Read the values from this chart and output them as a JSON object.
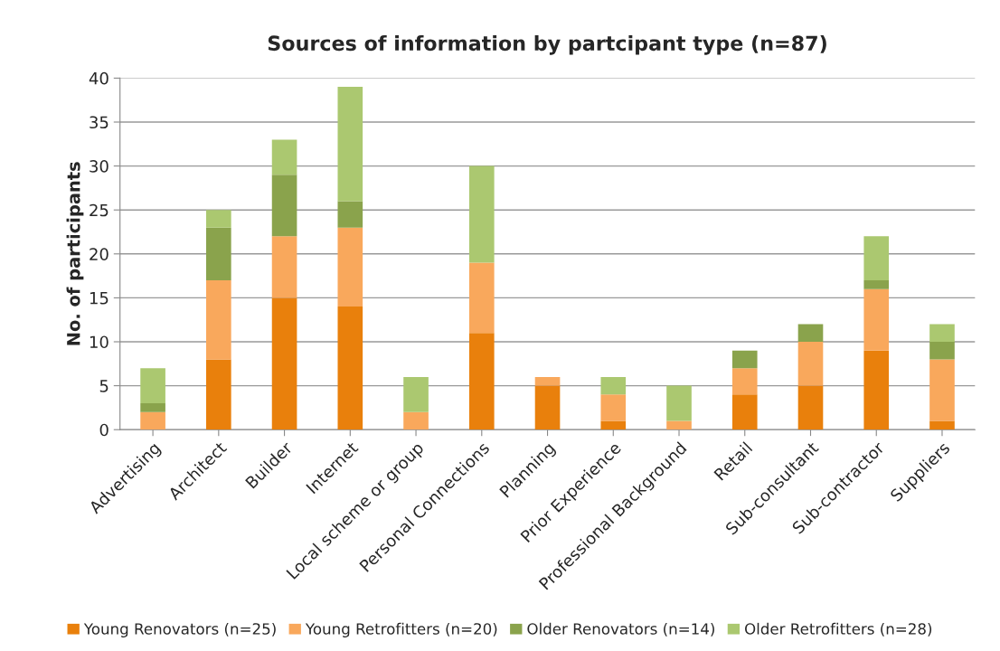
{
  "chart_data": {
    "type": "bar",
    "stacked": true,
    "title": "Sources of information by partcipant type (n=87)",
    "ylabel": "No. of participants",
    "categories": [
      "Advertising",
      "Architect",
      "Builder",
      "Internet",
      "Local scheme or group",
      "Personal Connections",
      "Planning",
      "Prior Experience",
      "Professional Background",
      "Retail",
      "Sub-consultant",
      "Sub-contractor",
      "Suppliers"
    ],
    "series": [
      {
        "name": "Young Renovators (n=25)",
        "color": "#e9800c",
        "values": [
          0,
          8,
          15,
          14,
          0,
          11,
          5,
          1,
          0,
          4,
          5,
          9,
          1
        ]
      },
      {
        "name": "Young Retrofitters (n=20)",
        "color": "#f9a85c",
        "values": [
          2,
          9,
          7,
          9,
          2,
          8,
          1,
          3,
          1,
          3,
          5,
          7,
          7
        ]
      },
      {
        "name": "Older Renovators (n=14)",
        "color": "#8aa34c",
        "values": [
          1,
          6,
          7,
          3,
          0,
          0,
          0,
          0,
          0,
          2,
          2,
          1,
          2
        ]
      },
      {
        "name": "Older Retrofitters (n=28)",
        "color": "#abc870",
        "values": [
          4,
          2,
          4,
          13,
          4,
          11,
          0,
          2,
          4,
          0,
          0,
          5,
          2
        ]
      }
    ],
    "ylim": [
      0,
      40
    ],
    "yticks": [
      0,
      5,
      10,
      15,
      20,
      25,
      30,
      35,
      40
    ],
    "grid": "y",
    "legend": "bottom"
  }
}
